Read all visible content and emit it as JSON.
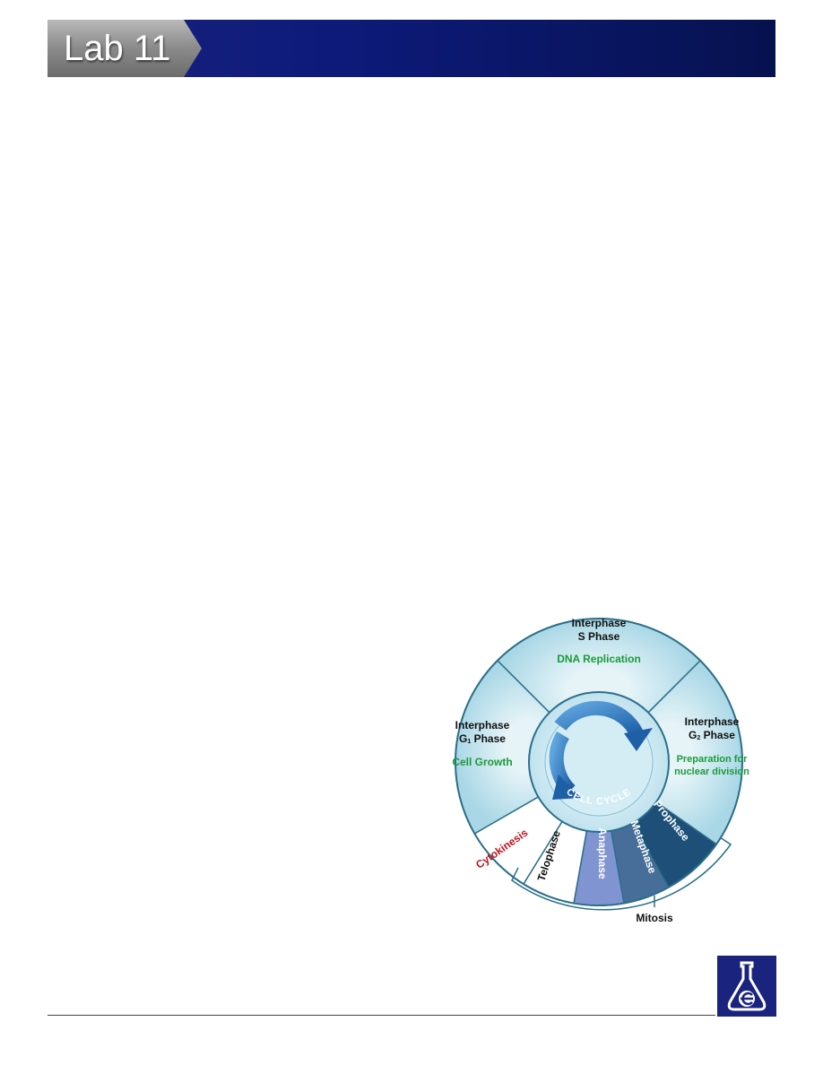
{
  "header": {
    "lab_label": "Lab 11"
  },
  "diagram": {
    "center_label": "CELL CYCLE",
    "segments": {
      "s_phase": {
        "title1": "Interphase",
        "title2": "S Phase",
        "desc": "DNA Replication"
      },
      "g1_phase": {
        "title1": "Interphase",
        "title2_main": "G",
        "title2_sub": "1",
        "title2_rest": " Phase",
        "desc": "Cell Growth"
      },
      "g2_phase": {
        "title1": "Interphase",
        "title2_main": "G",
        "title2_sub": "2",
        "title2_rest": " Phase",
        "desc1": "Preparation for",
        "desc2": "nuclear division"
      },
      "cytokinesis": "Cytokinesis",
      "telophase": "Telophase",
      "anaphase": "Anaphase",
      "metaphase": "Metaphase",
      "prophase": "Prophase"
    },
    "bracket_label": "Mitosis"
  },
  "colors": {
    "header_navy": "#1a237e",
    "green_text": "#1a9a3a",
    "red_text": "#c0141e",
    "anaphase": "#7f94d0",
    "metaphase": "#476d99",
    "prophase": "#1d4f78"
  },
  "logo": {
    "icon": "flask-e-icon"
  }
}
